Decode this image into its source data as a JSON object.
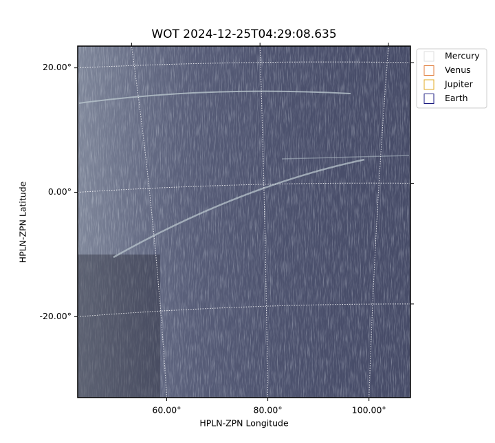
{
  "chart_data": {
    "type": "image",
    "title": "WOT 2024-12-25T04:29:08.635",
    "x_label": "HPLN-ZPN Longitude",
    "y_label": "HPLN-ZPN Latitude",
    "xlim": [
      42.4,
      108.2
    ],
    "ylim": [
      -33,
      23.5
    ],
    "xticks": [
      {
        "value": 60,
        "label": "60.00°"
      },
      {
        "value": 80,
        "label": "80.00°"
      },
      {
        "value": 100,
        "label": "100.00°"
      }
    ],
    "yticks": [
      {
        "value": 20,
        "label": "20.00°"
      },
      {
        "value": 0,
        "label": "0.00°"
      },
      {
        "value": -20,
        "label": "-20.00°"
      }
    ],
    "grid": true,
    "legend": {
      "location": "upper right",
      "entries": [
        {
          "name": "Mercury",
          "color": "#dddddd"
        },
        {
          "name": "Venus",
          "color": "#e07b39"
        },
        {
          "name": "Jupiter",
          "color": "#e0a820"
        },
        {
          "name": "Earth",
          "color": "#1a1a80"
        }
      ]
    }
  }
}
